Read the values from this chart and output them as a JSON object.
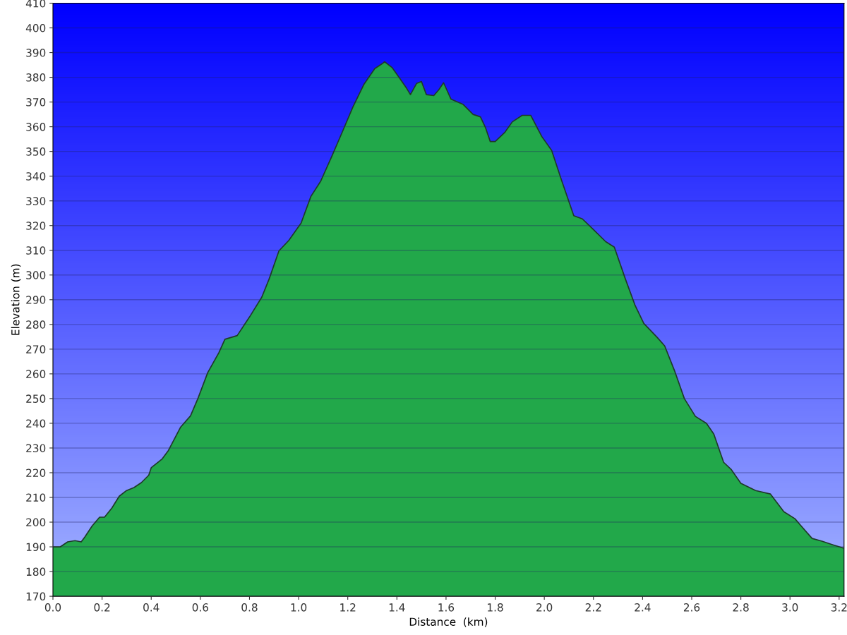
{
  "chart_data": {
    "type": "area",
    "xlabel": "Distance  (km)",
    "ylabel": "Elevation (m)",
    "series": [
      {
        "color": "#22a84a",
        "x": [
          0,
          0.03,
          0.06,
          0.09,
          0.115,
          0.13,
          0.16,
          0.19,
          0.21,
          0.24,
          0.27,
          0.3,
          0.33,
          0.36,
          0.39,
          0.4,
          0.445,
          0.47,
          0.52,
          0.56,
          0.59,
          0.63,
          0.675,
          0.7,
          0.75,
          0.8,
          0.85,
          0.88,
          0.92,
          0.96,
          1.01,
          1.05,
          1.09,
          1.135,
          1.18,
          1.22,
          1.265,
          1.31,
          1.34,
          1.35,
          1.38,
          1.41,
          1.44,
          1.455,
          1.48,
          1.5,
          1.52,
          1.55,
          1.57,
          1.59,
          1.62,
          1.67,
          1.71,
          1.74,
          1.76,
          1.78,
          1.8,
          1.84,
          1.87,
          1.91,
          1.945,
          1.99,
          2.03,
          2.07,
          2.12,
          2.155,
          2.2,
          2.25,
          2.285,
          2.33,
          2.37,
          2.405,
          2.46,
          2.49,
          2.53,
          2.57,
          2.615,
          2.66,
          2.69,
          2.73,
          2.76,
          2.8,
          2.86,
          2.92,
          2.975,
          3.02,
          3.045,
          3.09,
          3.13,
          3.175,
          3.22
        ],
        "values": [
          190,
          190,
          192,
          192.5,
          192,
          194,
          198.5,
          202,
          202,
          205.7,
          210.5,
          212.8,
          214,
          216,
          219,
          222,
          225.6,
          229,
          238.5,
          243,
          250,
          260.5,
          268.5,
          274,
          275.5,
          283,
          291,
          298.4,
          309.8,
          314,
          321,
          331.8,
          338,
          348,
          358.4,
          367.8,
          377,
          383.5,
          385.5,
          386.3,
          384,
          379.8,
          375.5,
          373,
          377.5,
          378.3,
          373,
          372.6,
          374.9,
          377.8,
          371.2,
          369,
          365,
          364,
          359.8,
          354,
          354,
          357.8,
          362,
          364.6,
          364.6,
          356,
          350.4,
          338.4,
          324,
          322.7,
          318.4,
          313.5,
          311.3,
          298.4,
          287.6,
          280.4,
          274.7,
          271.3,
          261.3,
          250,
          242.8,
          240,
          235.6,
          224.2,
          221.4,
          215.7,
          212.8,
          211.4,
          204.2,
          201.4,
          198.5,
          193.4,
          192.3,
          190.8,
          189.4
        ]
      }
    ],
    "xlim": [
      0,
      3.22
    ],
    "xticks": [
      {
        "value": 0,
        "label": "0.0"
      },
      0.2,
      0.4,
      0.6,
      0.8,
      {
        "value": 1,
        "label": "1.0"
      },
      1.2,
      1.4,
      1.6,
      1.8,
      {
        "value": 2,
        "label": "2.0"
      },
      2.2,
      2.4,
      2.6,
      2.8,
      {
        "value": 3,
        "label": "3.0"
      },
      3.2
    ],
    "ylim": [
      170,
      410
    ],
    "yticks": [
      170,
      180,
      190,
      200,
      210,
      220,
      230,
      240,
      250,
      260,
      270,
      280,
      290,
      300,
      310,
      320,
      330,
      340,
      350,
      360,
      370,
      380,
      390,
      400,
      410
    ],
    "grid": "y",
    "legend": false
  }
}
